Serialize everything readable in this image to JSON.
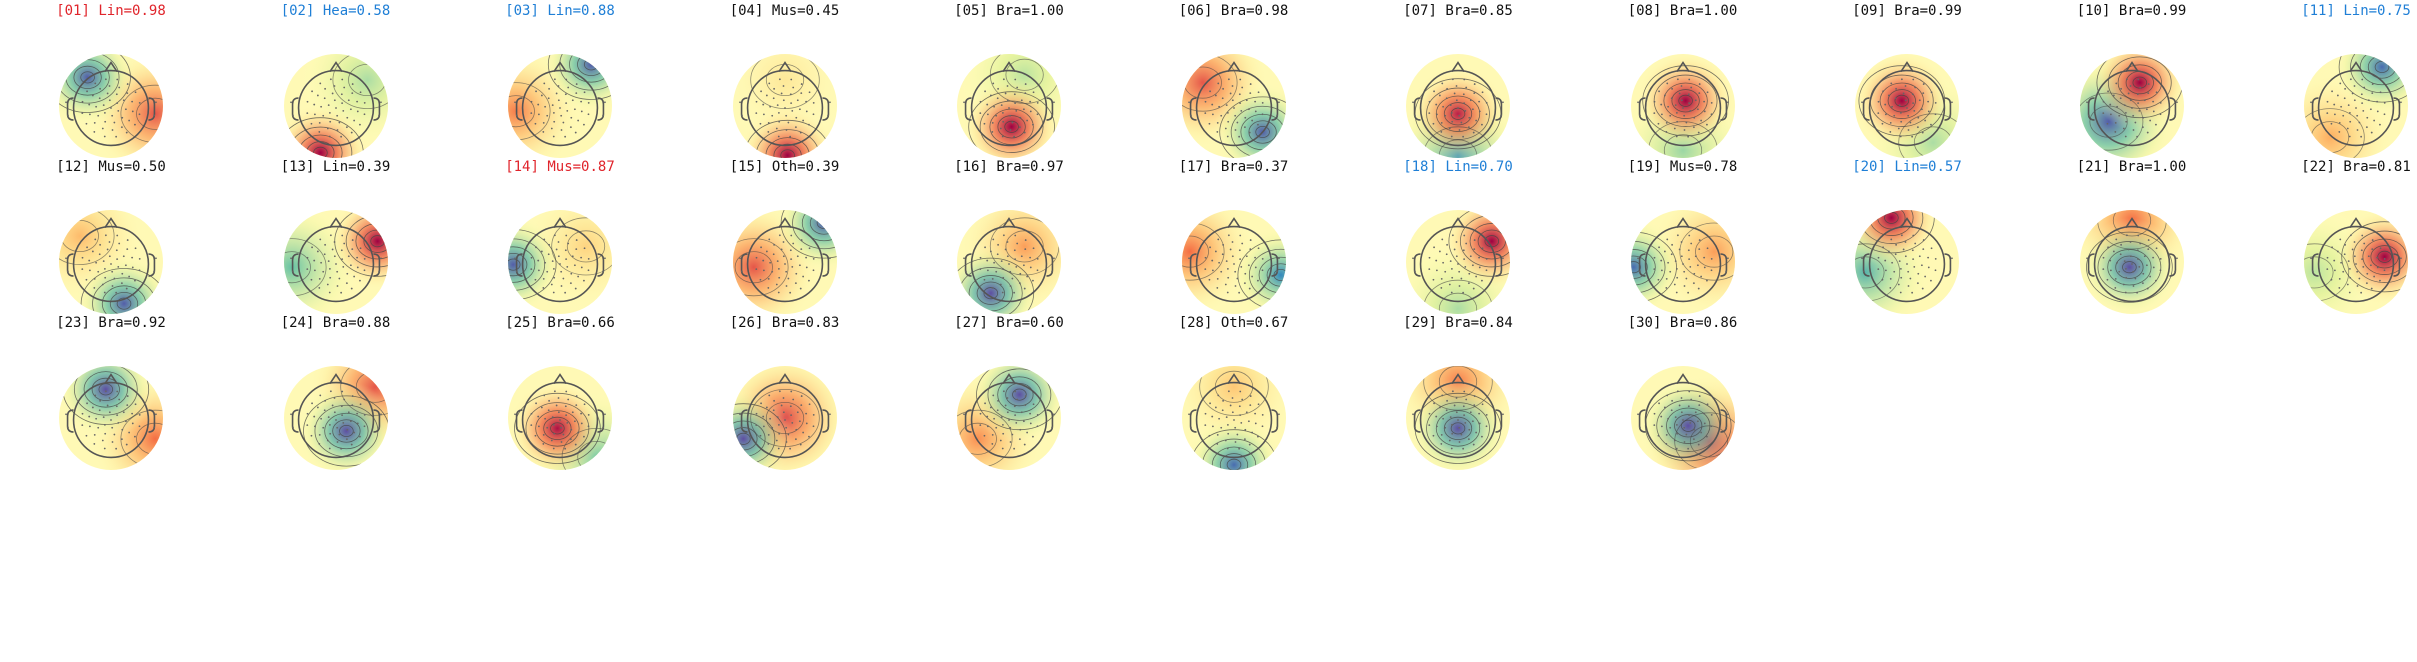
{
  "colors": {
    "red_label": "#e0242b",
    "blue_label": "#1f7fd6",
    "default_label": "#111111",
    "head_outline": "#555555",
    "contour": "#444444",
    "sensor_dot": "#666666",
    "colormap": [
      "#5e4fa2",
      "#3288bd",
      "#66c2a5",
      "#abdda4",
      "#e6f598",
      "#ffffbf",
      "#fee08b",
      "#fdae61",
      "#f46d43",
      "#d53e4f",
      "#9e0142"
    ]
  },
  "components": [
    {
      "label": "[01] Lin=0.98",
      "label_color": "red",
      "pos": {
        "lx": -0.45,
        "ly": -0.55,
        "lv": -0.95
      },
      "neg": {
        "lx": 0.85,
        "ly": 0.15,
        "lv": 0.7
      }
    },
    {
      "label": "[02] Hea=0.58",
      "label_color": "blue",
      "pos": {
        "lx": -0.3,
        "ly": 0.9,
        "lv": 1.0
      },
      "neg": {
        "lx": 0.6,
        "ly": -0.5,
        "lv": -0.4
      }
    },
    {
      "label": "[03] Lin=0.88",
      "label_color": "blue",
      "pos": {
        "lx": 0.6,
        "ly": -0.8,
        "lv": -0.95
      },
      "neg": {
        "lx": -0.85,
        "ly": 0.1,
        "lv": 0.55
      }
    },
    {
      "label": "[04] Mus=0.45",
      "label_color": "default",
      "pos": {
        "lx": 0.05,
        "ly": 0.95,
        "lv": 1.0
      },
      "neg": {
        "lx": 0.0,
        "ly": -0.5,
        "lv": 0.15
      }
    },
    {
      "label": "[05] Bra=1.00",
      "label_color": "default",
      "pos": {
        "lx": 0.05,
        "ly": 0.4,
        "lv": 1.0
      },
      "neg": {
        "lx": 0.3,
        "ly": -0.6,
        "lv": -0.35
      }
    },
    {
      "label": "[06] Bra=0.98",
      "label_color": "default",
      "pos": {
        "lx": 0.55,
        "ly": 0.5,
        "lv": -0.95
      },
      "neg": {
        "lx": -0.6,
        "ly": -0.45,
        "lv": 0.7
      }
    },
    {
      "label": "[07] Bra=0.85",
      "label_color": "default",
      "pos": {
        "lx": 0.0,
        "ly": 0.15,
        "lv": 0.9
      },
      "neg": {
        "lx": 0.0,
        "ly": 0.95,
        "lv": -0.75
      }
    },
    {
      "label": "[08] Bra=1.00",
      "label_color": "default",
      "pos": {
        "lx": 0.05,
        "ly": -0.1,
        "lv": 1.0
      },
      "neg": {
        "lx": 0.0,
        "ly": 0.85,
        "lv": -0.45
      }
    },
    {
      "label": "[09] Bra=0.99",
      "label_color": "default",
      "pos": {
        "lx": -0.1,
        "ly": -0.1,
        "lv": 1.0
      },
      "neg": {
        "lx": 0.5,
        "ly": 0.7,
        "lv": -0.4
      }
    },
    {
      "label": "[10] Bra=0.99",
      "label_color": "default",
      "pos": {
        "lx": 0.15,
        "ly": -0.45,
        "lv": 1.0
      },
      "neg": {
        "lx": -0.45,
        "ly": 0.3,
        "lv": -0.95
      }
    },
    {
      "label": "[11] Lin=0.75",
      "label_color": "blue",
      "pos": {
        "lx": 0.5,
        "ly": -0.75,
        "lv": -0.9
      },
      "neg": {
        "lx": -0.5,
        "ly": 0.6,
        "lv": 0.4
      }
    },
    {
      "label": "[12] Mus=0.50",
      "label_color": "default",
      "pos": {
        "lx": 0.25,
        "ly": 0.8,
        "lv": -0.95
      },
      "neg": {
        "lx": -0.6,
        "ly": -0.5,
        "lv": 0.35
      }
    },
    {
      "label": "[13] Lin=0.39",
      "label_color": "default",
      "pos": {
        "lx": 0.8,
        "ly": -0.4,
        "lv": 1.0
      },
      "neg": {
        "lx": -0.85,
        "ly": 0.1,
        "lv": -0.6
      }
    },
    {
      "label": "[14] Mus=0.87",
      "label_color": "red",
      "pos": {
        "lx": -0.9,
        "ly": 0.05,
        "lv": -0.95
      },
      "neg": {
        "lx": 0.5,
        "ly": -0.3,
        "lv": 0.25
      }
    },
    {
      "label": "[15] Oth=0.39",
      "label_color": "default",
      "pos": {
        "lx": 0.75,
        "ly": -0.75,
        "lv": -0.95
      },
      "neg": {
        "lx": -0.6,
        "ly": 0.1,
        "lv": 0.7
      }
    },
    {
      "label": "[16] Bra=0.97",
      "label_color": "default",
      "pos": {
        "lx": -0.35,
        "ly": 0.6,
        "lv": -1.0
      },
      "neg": {
        "lx": 0.3,
        "ly": -0.3,
        "lv": 0.45
      }
    },
    {
      "label": "[17] Bra=0.37",
      "label_color": "default",
      "pos": {
        "lx": 0.9,
        "ly": 0.25,
        "lv": -0.8
      },
      "neg": {
        "lx": -0.85,
        "ly": -0.2,
        "lv": 0.6
      }
    },
    {
      "label": "[18] Lin=0.70",
      "label_color": "blue",
      "pos": {
        "lx": 0.65,
        "ly": -0.4,
        "lv": 1.0
      },
      "neg": {
        "lx": 0.0,
        "ly": 0.9,
        "lv": -0.4
      }
    },
    {
      "label": "[19] Mus=0.78",
      "label_color": "default",
      "pos": {
        "lx": -0.95,
        "ly": 0.1,
        "lv": -0.9
      },
      "neg": {
        "lx": 0.6,
        "ly": -0.2,
        "lv": 0.45
      }
    },
    {
      "label": "[20] Lin=0.57",
      "label_color": "blue",
      "pos": {
        "lx": -0.3,
        "ly": -0.85,
        "lv": 1.0
      },
      "neg": {
        "lx": -0.8,
        "ly": 0.2,
        "lv": -0.65
      }
    },
    {
      "label": "[21] Bra=1.00",
      "label_color": "default",
      "pos": {
        "lx": -0.05,
        "ly": 0.1,
        "lv": -1.0
      },
      "neg": {
        "lx": 0.0,
        "ly": -0.8,
        "lv": 0.6
      }
    },
    {
      "label": "[22] Bra=0.81",
      "label_color": "default",
      "pos": {
        "lx": 0.55,
        "ly": -0.1,
        "lv": 1.0
      },
      "neg": {
        "lx": -0.8,
        "ly": 0.2,
        "lv": -0.35
      }
    },
    {
      "label": "[23] Bra=0.92",
      "label_color": "default",
      "pos": {
        "lx": -0.1,
        "ly": -0.55,
        "lv": -1.0
      },
      "neg": {
        "lx": 0.85,
        "ly": 0.4,
        "lv": 0.6
      }
    },
    {
      "label": "[24] Bra=0.88",
      "label_color": "default",
      "pos": {
        "lx": 0.2,
        "ly": 0.25,
        "lv": -1.0
      },
      "neg": {
        "lx": 0.75,
        "ly": -0.6,
        "lv": 0.7
      }
    },
    {
      "label": "[25] Bra=0.66",
      "label_color": "default",
      "pos": {
        "lx": -0.05,
        "ly": 0.2,
        "lv": 0.95
      },
      "neg": {
        "lx": 0.7,
        "ly": 0.75,
        "lv": -0.55
      }
    },
    {
      "label": "[26] Bra=0.83",
      "label_color": "default",
      "pos": {
        "lx": -0.8,
        "ly": 0.4,
        "lv": -1.0
      },
      "neg": {
        "lx": 0.0,
        "ly": 0.0,
        "lv": 0.75
      }
    },
    {
      "label": "[27] Bra=0.60",
      "label_color": "default",
      "pos": {
        "lx": 0.2,
        "ly": -0.45,
        "lv": -1.0
      },
      "neg": {
        "lx": -0.6,
        "ly": 0.4,
        "lv": 0.5
      }
    },
    {
      "label": "[28] Oth=0.67",
      "label_color": "default",
      "pos": {
        "lx": 0.0,
        "ly": 0.9,
        "lv": -0.9
      },
      "neg": {
        "lx": 0.0,
        "ly": -0.6,
        "lv": 0.3
      }
    },
    {
      "label": "[29] Bra=0.84",
      "label_color": "default",
      "pos": {
        "lx": 0.0,
        "ly": 0.2,
        "lv": -1.0
      },
      "neg": {
        "lx": 0.0,
        "ly": -0.7,
        "lv": 0.55
      }
    },
    {
      "label": "[30] Bra=0.86",
      "label_color": "default",
      "pos": {
        "lx": 0.1,
        "ly": 0.15,
        "lv": -1.0
      },
      "neg": {
        "lx": 0.5,
        "ly": 0.45,
        "lv": 0.9
      }
    }
  ]
}
